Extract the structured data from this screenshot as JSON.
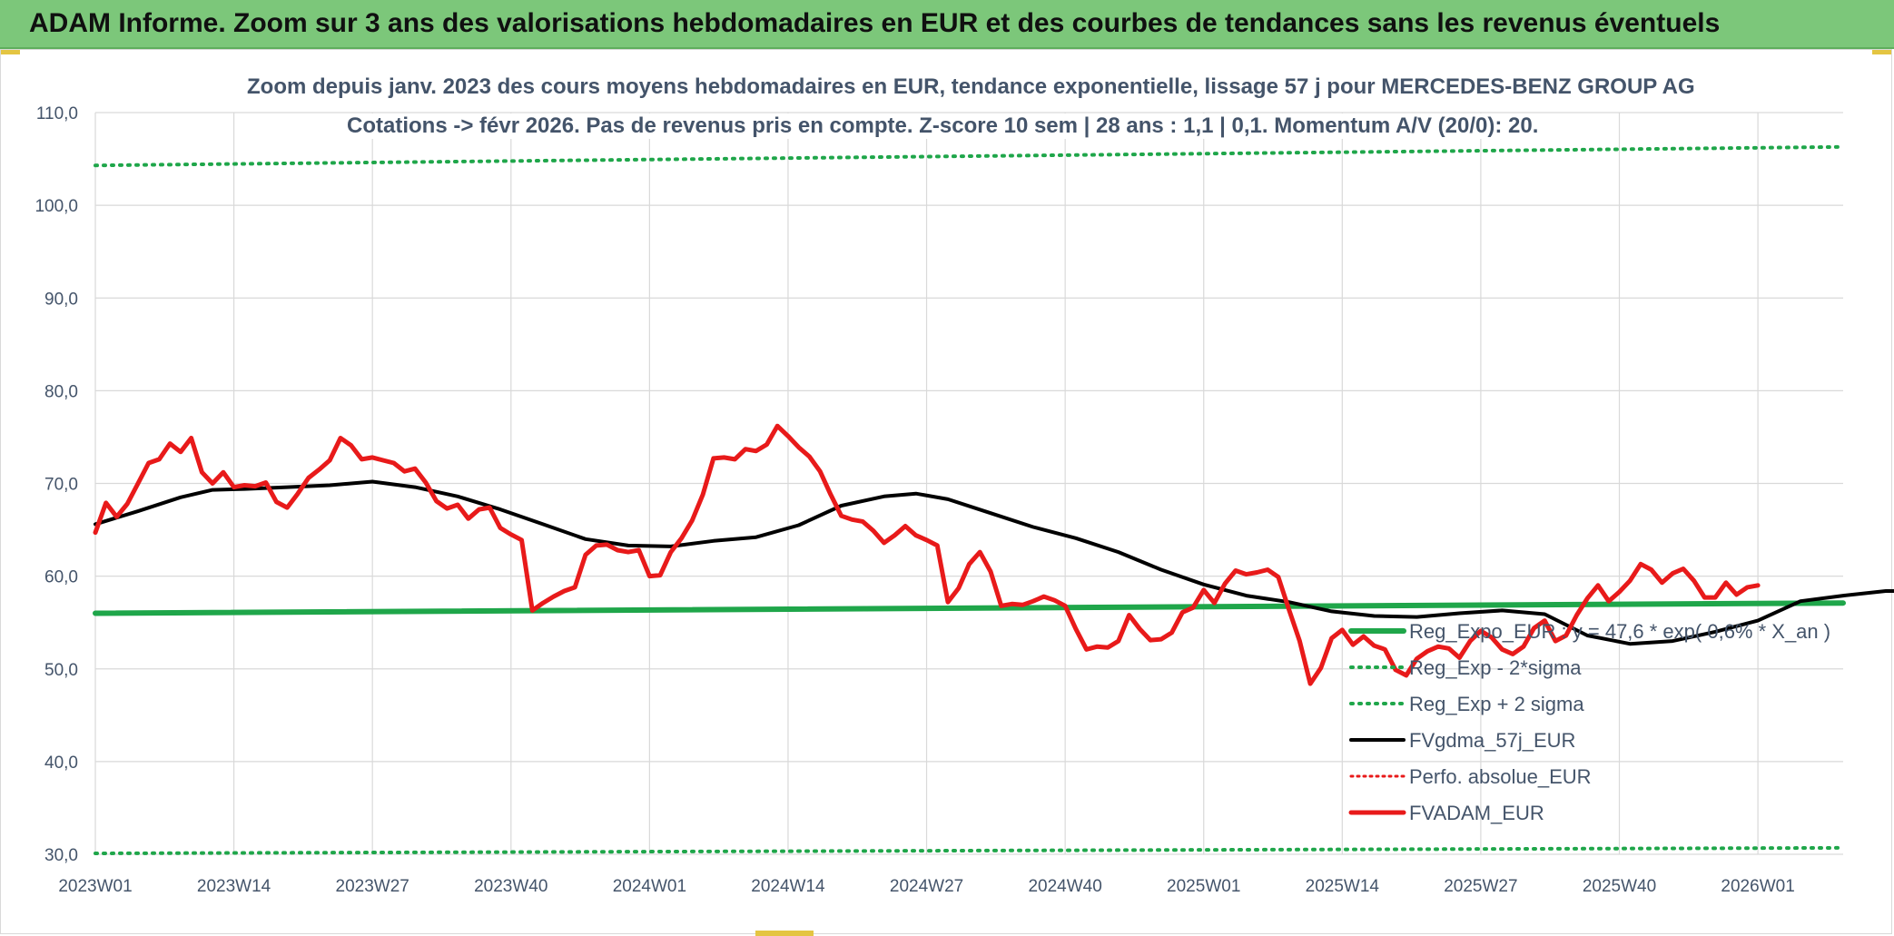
{
  "header": {
    "title": "ADAM Informe. Zoom sur 3 ans des valorisations hebdomadaires en EUR et des courbes de tendances sans les revenus éventuels"
  },
  "colors": {
    "header_bg": "#7cc77a",
    "adam_line": "#e81a1a",
    "gdma_line": "#000000",
    "reg_line": "#1fa64a",
    "band_lines": "#1fa64a",
    "perfo_line": "#e81a1a",
    "grid": "#d9d9d9",
    "text": "#44546a"
  },
  "chart_data": {
    "type": "line",
    "title": "Zoom depuis janv. 2023 des cours moyens hebdomadaires en EUR, tendance exponentielle, lissage 57 j pour MERCEDES-BENZ GROUP AG",
    "subtitle": "Cotations -> févr 2026. Pas de revenus pris en compte. Z-score 10 sem | 28 ans : 1,1 | 0,1. Momentum A/V (20/0): 20.",
    "xlabel": "",
    "ylabel": "",
    "ylim": [
      30,
      110
    ],
    "yticks": [
      "30,0",
      "40,0",
      "50,0",
      "60,0",
      "70,0",
      "80,0",
      "90,0",
      "100,0",
      "110,0"
    ],
    "xticks": [
      "2023W01",
      "2023W14",
      "2023W27",
      "2023W40",
      "2024W01",
      "2024W14",
      "2024W27",
      "2024W40",
      "2025W01",
      "2025W14",
      "2025W27",
      "2025W40",
      "2026W01"
    ],
    "grid": true,
    "legend_position": "bottom-right",
    "x_unit": "week index from 2023W01",
    "series": [
      {
        "name": "Reg_Expo_EUR : y = 47,6 * exp( 0,6% * X_an )",
        "style": "solid-thick",
        "color": "#1fa64a",
        "points": [
          [
            0,
            56.0
          ],
          [
            164,
            57.1
          ]
        ]
      },
      {
        "name": "Reg_Exp - 2*sigma",
        "style": "dotted",
        "color": "#1fa64a",
        "points": [
          [
            0,
            30.1
          ],
          [
            164,
            30.7
          ]
        ]
      },
      {
        "name": "Reg_Exp + 2 sigma",
        "style": "dotted",
        "color": "#1fa64a",
        "points": [
          [
            0,
            104.3
          ],
          [
            164,
            106.3
          ]
        ]
      },
      {
        "name": "FVgdma_57j_EUR",
        "style": "solid",
        "color": "#000000",
        "points": [
          [
            0,
            65.6
          ],
          [
            4,
            67.0
          ],
          [
            8,
            68.5
          ],
          [
            11,
            69.3
          ],
          [
            14,
            69.4
          ],
          [
            18,
            69.6
          ],
          [
            22,
            69.8
          ],
          [
            26,
            70.2
          ],
          [
            30,
            69.6
          ],
          [
            34,
            68.6
          ],
          [
            38,
            67.2
          ],
          [
            42,
            65.6
          ],
          [
            46,
            64.0
          ],
          [
            50,
            63.3
          ],
          [
            54,
            63.2
          ],
          [
            58,
            63.8
          ],
          [
            62,
            64.2
          ],
          [
            66,
            65.5
          ],
          [
            70,
            67.6
          ],
          [
            74,
            68.6
          ],
          [
            77,
            68.9
          ],
          [
            80,
            68.3
          ],
          [
            84,
            66.8
          ],
          [
            88,
            65.3
          ],
          [
            92,
            64.1
          ],
          [
            96,
            62.6
          ],
          [
            100,
            60.7
          ],
          [
            104,
            59.1
          ],
          [
            108,
            57.9
          ],
          [
            112,
            57.2
          ],
          [
            116,
            56.2
          ],
          [
            120,
            55.7
          ],
          [
            124,
            55.6
          ],
          [
            128,
            56.0
          ],
          [
            132,
            56.3
          ],
          [
            136,
            55.9
          ],
          [
            140,
            53.6
          ],
          [
            144,
            52.7
          ],
          [
            148,
            53.0
          ],
          [
            152,
            54.0
          ],
          [
            156,
            55.2
          ],
          [
            160,
            57.3
          ],
          [
            164,
            57.9
          ],
          [
            168,
            58.4
          ],
          [
            172,
            58.4
          ],
          [
            176,
            58.7
          ],
          [
            178,
            58.8
          ]
        ]
      },
      {
        "name": "Perfo. absolue_EUR",
        "style": "dotted",
        "color": "#e81a1a",
        "points": []
      },
      {
        "name": "FVADAM_EUR",
        "style": "solid-thick",
        "color": "#e81a1a",
        "points": [
          [
            0,
            64.7
          ],
          [
            1,
            67.9
          ],
          [
            2,
            66.4
          ],
          [
            3,
            67.8
          ],
          [
            4,
            70.0
          ],
          [
            5,
            72.2
          ],
          [
            6,
            72.6
          ],
          [
            7,
            74.3
          ],
          [
            8,
            73.4
          ],
          [
            9,
            74.9
          ],
          [
            10,
            71.2
          ],
          [
            11,
            70.0
          ],
          [
            12,
            71.2
          ],
          [
            13,
            69.6
          ],
          [
            14,
            69.8
          ],
          [
            15,
            69.7
          ],
          [
            16,
            70.1
          ],
          [
            17,
            68.0
          ],
          [
            18,
            67.4
          ],
          [
            19,
            68.9
          ],
          [
            20,
            70.6
          ],
          [
            21,
            71.5
          ],
          [
            22,
            72.5
          ],
          [
            23,
            74.9
          ],
          [
            24,
            74.1
          ],
          [
            25,
            72.6
          ],
          [
            26,
            72.8
          ],
          [
            27,
            72.5
          ],
          [
            28,
            72.2
          ],
          [
            29,
            71.3
          ],
          [
            30,
            71.6
          ],
          [
            31,
            70.1
          ],
          [
            32,
            68.1
          ],
          [
            33,
            67.3
          ],
          [
            34,
            67.7
          ],
          [
            35,
            66.2
          ],
          [
            36,
            67.2
          ],
          [
            37,
            67.4
          ],
          [
            38,
            65.2
          ],
          [
            39,
            64.5
          ],
          [
            40,
            63.9
          ],
          [
            41,
            56.3
          ],
          [
            42,
            57.1
          ],
          [
            43,
            57.8
          ],
          [
            44,
            58.4
          ],
          [
            45,
            58.8
          ],
          [
            46,
            62.3
          ],
          [
            47,
            63.3
          ],
          [
            48,
            63.4
          ],
          [
            49,
            62.8
          ],
          [
            50,
            62.6
          ],
          [
            51,
            62.8
          ],
          [
            52,
            60.0
          ],
          [
            53,
            60.1
          ],
          [
            54,
            62.6
          ],
          [
            55,
            64.1
          ],
          [
            56,
            66.0
          ],
          [
            57,
            68.8
          ],
          [
            58,
            72.7
          ],
          [
            59,
            72.8
          ],
          [
            60,
            72.6
          ],
          [
            61,
            73.7
          ],
          [
            62,
            73.5
          ],
          [
            63,
            74.2
          ],
          [
            64,
            76.2
          ],
          [
            65,
            75.1
          ],
          [
            66,
            73.9
          ],
          [
            67,
            72.9
          ],
          [
            68,
            71.3
          ],
          [
            69,
            68.8
          ],
          [
            70,
            66.5
          ],
          [
            71,
            66.1
          ],
          [
            72,
            65.9
          ],
          [
            73,
            64.9
          ],
          [
            74,
            63.6
          ],
          [
            75,
            64.4
          ],
          [
            76,
            65.4
          ],
          [
            77,
            64.4
          ],
          [
            78,
            63.9
          ],
          [
            79,
            63.3
          ],
          [
            80,
            57.2
          ],
          [
            81,
            58.7
          ],
          [
            82,
            61.3
          ],
          [
            83,
            62.6
          ],
          [
            84,
            60.5
          ],
          [
            85,
            56.8
          ],
          [
            86,
            57.0
          ],
          [
            87,
            56.9
          ],
          [
            88,
            57.3
          ],
          [
            89,
            57.8
          ],
          [
            90,
            57.4
          ],
          [
            91,
            56.8
          ],
          [
            92,
            54.3
          ],
          [
            93,
            52.1
          ],
          [
            94,
            52.4
          ],
          [
            95,
            52.3
          ],
          [
            96,
            53.0
          ],
          [
            97,
            55.8
          ],
          [
            98,
            54.3
          ],
          [
            99,
            53.1
          ],
          [
            100,
            53.2
          ],
          [
            101,
            53.9
          ],
          [
            102,
            56.1
          ],
          [
            103,
            56.6
          ],
          [
            104,
            58.5
          ],
          [
            105,
            57.1
          ],
          [
            106,
            59.2
          ],
          [
            107,
            60.6
          ],
          [
            108,
            60.2
          ],
          [
            109,
            60.4
          ],
          [
            110,
            60.7
          ],
          [
            111,
            59.9
          ],
          [
            112,
            56.4
          ],
          [
            113,
            53.0
          ],
          [
            114,
            48.4
          ],
          [
            115,
            50.1
          ],
          [
            116,
            53.3
          ],
          [
            117,
            54.2
          ],
          [
            118,
            52.6
          ],
          [
            119,
            53.5
          ],
          [
            120,
            52.5
          ],
          [
            121,
            52.1
          ],
          [
            122,
            49.9
          ],
          [
            123,
            49.3
          ],
          [
            124,
            51.1
          ],
          [
            125,
            51.9
          ],
          [
            126,
            52.4
          ],
          [
            127,
            52.2
          ],
          [
            128,
            51.2
          ],
          [
            129,
            53.0
          ],
          [
            130,
            54.1
          ],
          [
            131,
            53.4
          ],
          [
            132,
            52.1
          ],
          [
            133,
            51.6
          ],
          [
            134,
            52.4
          ],
          [
            135,
            54.4
          ],
          [
            136,
            55.2
          ],
          [
            137,
            53.0
          ],
          [
            138,
            53.6
          ],
          [
            139,
            55.8
          ],
          [
            140,
            57.6
          ],
          [
            141,
            59.0
          ],
          [
            142,
            57.3
          ],
          [
            143,
            58.3
          ],
          [
            144,
            59.5
          ],
          [
            145,
            61.3
          ],
          [
            146,
            60.7
          ],
          [
            147,
            59.3
          ],
          [
            148,
            60.3
          ],
          [
            149,
            60.8
          ],
          [
            150,
            59.5
          ],
          [
            151,
            57.7
          ],
          [
            152,
            57.7
          ],
          [
            153,
            59.3
          ],
          [
            154,
            58.0
          ],
          [
            155,
            58.8
          ],
          [
            156,
            59.0
          ]
        ]
      }
    ]
  }
}
